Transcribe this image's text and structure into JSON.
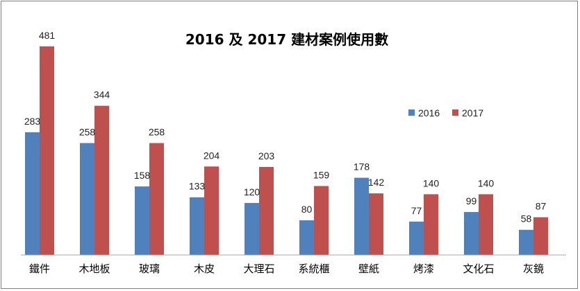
{
  "chart_data": {
    "type": "bar",
    "title": "2016 及 2017 建材案例使用數",
    "categories": [
      "鐵件",
      "木地板",
      "玻璃",
      "木皮",
      "大理石",
      "系統櫃",
      "壁紙",
      "烤漆",
      "文化石",
      "灰鏡"
    ],
    "series": [
      {
        "name": "2016",
        "color": "#4f81bd",
        "values": [
          283,
          258,
          158,
          133,
          120,
          80,
          178,
          77,
          99,
          58
        ]
      },
      {
        "name": "2017",
        "color": "#c0504d",
        "values": [
          481,
          344,
          258,
          204,
          203,
          159,
          142,
          140,
          140,
          87
        ]
      }
    ],
    "ylim": [
      0,
      500
    ],
    "grid": false,
    "legend_position": "right"
  }
}
